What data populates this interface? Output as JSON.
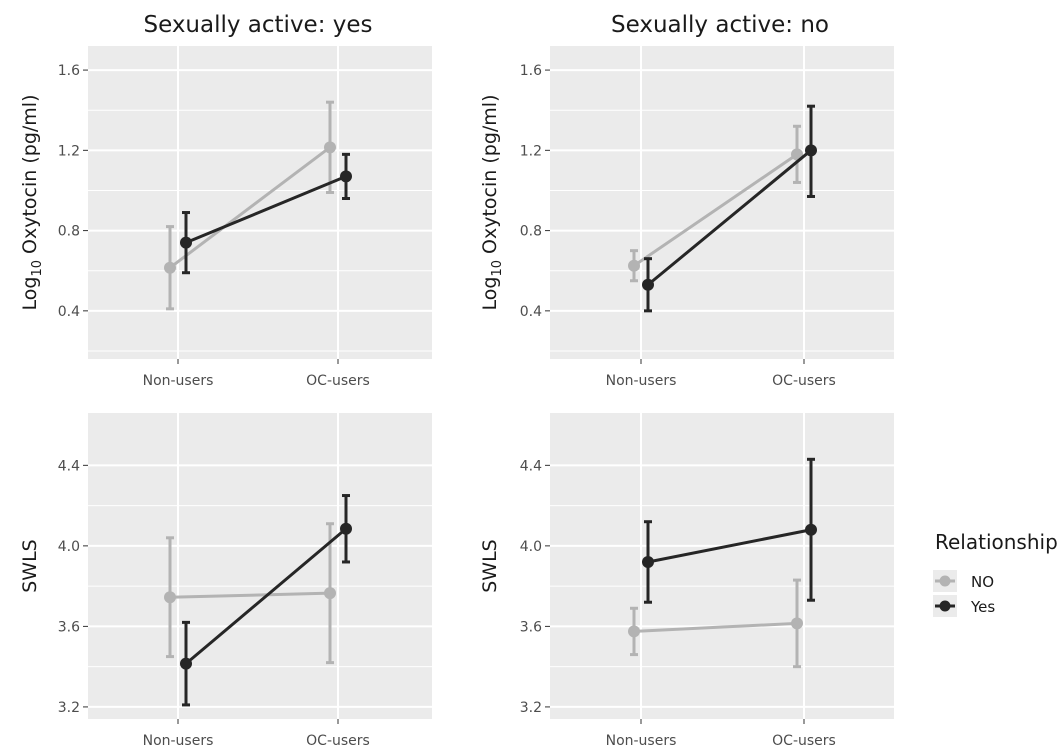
{
  "column_titles": [
    "Sexually active: yes",
    "Sexually active: no"
  ],
  "legend": {
    "title": "Relationship",
    "entries": [
      {
        "label": "NO",
        "color": "#b3b3b3"
      },
      {
        "label": "Yes",
        "color": "#262626"
      }
    ]
  },
  "chart_data": [
    {
      "type": "line",
      "title": "Sexually active: yes",
      "ylabel_main": "Log",
      "ylabel_sub": "10",
      "ylabel_rest": " Oxytocin (pg/ml)",
      "categories": [
        "Non-users",
        "OC-users"
      ],
      "ylim": [
        0.16,
        1.72
      ],
      "yticks": [
        0.4,
        0.8,
        1.2,
        1.6
      ],
      "ytick_labels": [
        "0.4",
        "0.8",
        "1.2",
        "1.6"
      ],
      "series": [
        {
          "name": "NO",
          "values": [
            0.615,
            1.215
          ],
          "lower": [
            0.41,
            0.99
          ],
          "upper": [
            0.82,
            1.44
          ]
        },
        {
          "name": "Yes",
          "values": [
            0.74,
            1.07
          ],
          "lower": [
            0.59,
            0.96
          ],
          "upper": [
            0.89,
            1.18
          ]
        }
      ]
    },
    {
      "type": "line",
      "title": "Sexually active: no",
      "ylabel_main": "Log",
      "ylabel_sub": "10",
      "ylabel_rest": " Oxytocin (pg/ml)",
      "categories": [
        "Non-users",
        "OC-users"
      ],
      "ylim": [
        0.16,
        1.72
      ],
      "yticks": [
        0.4,
        0.8,
        1.2,
        1.6
      ],
      "ytick_labels": [
        "0.4",
        "0.8",
        "1.2",
        "1.6"
      ],
      "series": [
        {
          "name": "NO",
          "values": [
            0.625,
            1.18
          ],
          "lower": [
            0.55,
            1.04
          ],
          "upper": [
            0.7,
            1.32
          ]
        },
        {
          "name": "Yes",
          "values": [
            0.53,
            1.2
          ],
          "lower": [
            0.4,
            0.97
          ],
          "upper": [
            0.66,
            1.42
          ]
        }
      ]
    },
    {
      "type": "line",
      "ylabel_main": "SWLS",
      "ylabel_sub": "",
      "ylabel_rest": "",
      "categories": [
        "Non-users",
        "OC-users"
      ],
      "ylim": [
        3.14,
        4.66
      ],
      "yticks": [
        3.2,
        3.6,
        4.0,
        4.4
      ],
      "ytick_labels": [
        "3.2",
        "3.6",
        "4.0",
        "4.4"
      ],
      "series": [
        {
          "name": "NO",
          "values": [
            3.745,
            3.765
          ],
          "lower": [
            3.45,
            3.42
          ],
          "upper": [
            4.04,
            4.11
          ]
        },
        {
          "name": "Yes",
          "values": [
            3.415,
            4.085
          ],
          "lower": [
            3.21,
            3.92
          ],
          "upper": [
            3.62,
            4.25
          ]
        }
      ]
    },
    {
      "type": "line",
      "ylabel_main": "SWLS",
      "ylabel_sub": "",
      "ylabel_rest": "",
      "categories": [
        "Non-users",
        "OC-users"
      ],
      "ylim": [
        3.14,
        4.66
      ],
      "yticks": [
        3.2,
        3.6,
        4.0,
        4.4
      ],
      "ytick_labels": [
        "3.2",
        "3.6",
        "4.0",
        "4.4"
      ],
      "series": [
        {
          "name": "NO",
          "values": [
            3.575,
            3.615
          ],
          "lower": [
            3.46,
            3.4
          ],
          "upper": [
            3.69,
            3.83
          ]
        },
        {
          "name": "Yes",
          "values": [
            3.92,
            4.08
          ],
          "lower": [
            3.72,
            3.73
          ],
          "upper": [
            4.12,
            4.43
          ]
        }
      ]
    }
  ]
}
